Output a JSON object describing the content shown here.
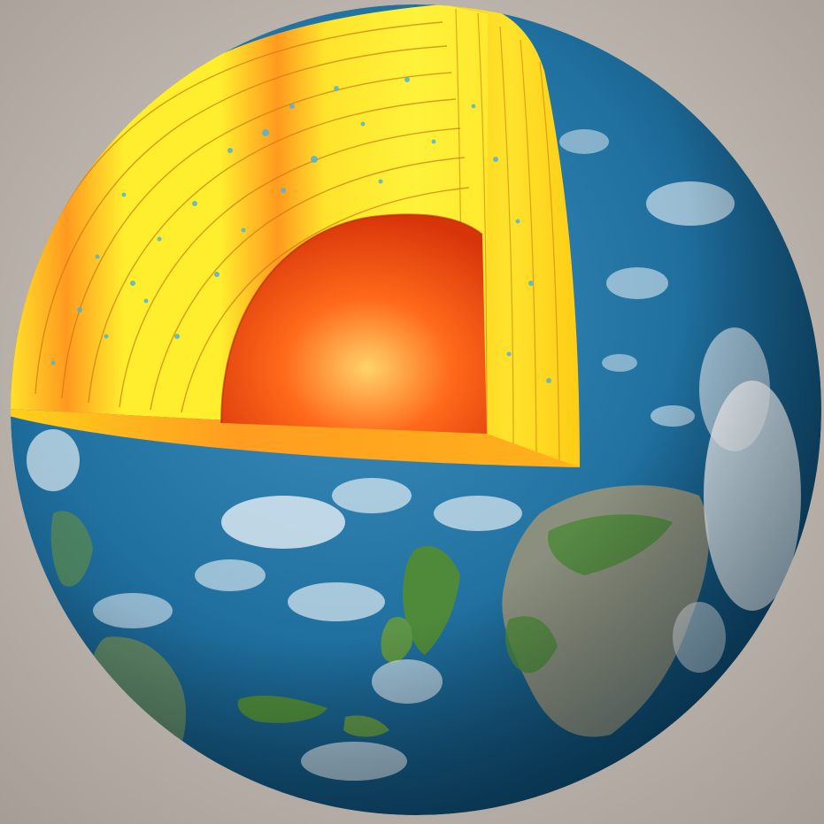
{
  "scene": {
    "subject": "earth-cutaway",
    "colors": {
      "background_light": "#d9d3cc",
      "background_dark": "#a59d95",
      "ocean_light": "#3f8fbf",
      "ocean_mid": "#1f6f9f",
      "ocean_dark": "#0d4466",
      "land_green": "#4e8a3a",
      "land_gray": "#8b8f7e",
      "cloud": "#ffffff",
      "mantle_yellow": "#ffee2e",
      "mantle_orange": "#ff9a1f",
      "mantle_speck": "#4fb4d8",
      "core_light": "#ffd36a",
      "core_mid": "#ff6a1a",
      "core_dark": "#d8340a"
    },
    "layer_count": 7
  }
}
